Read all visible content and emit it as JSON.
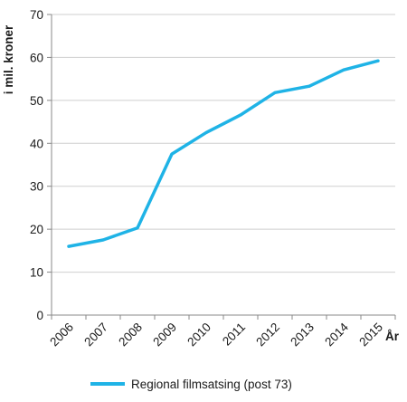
{
  "chart_data": {
    "type": "line",
    "xlabel": "År",
    "ylabel": "i mil. kroner",
    "categories": [
      "2006",
      "2007",
      "2008",
      "2009",
      "2010",
      "2011",
      "2012",
      "2013",
      "2014",
      "2015"
    ],
    "ylim": [
      0,
      70
    ],
    "yticks": [
      0,
      10,
      20,
      30,
      40,
      50,
      60,
      70
    ],
    "grid": true,
    "legend_position": "bottom",
    "series": [
      {
        "name": "Regional filmsatsing (post 73)",
        "color": "#1fb3e6",
        "values": [
          16.0,
          17.5,
          20.3,
          37.5,
          42.5,
          46.6,
          51.8,
          53.3,
          57.1,
          59.2
        ]
      }
    ]
  }
}
